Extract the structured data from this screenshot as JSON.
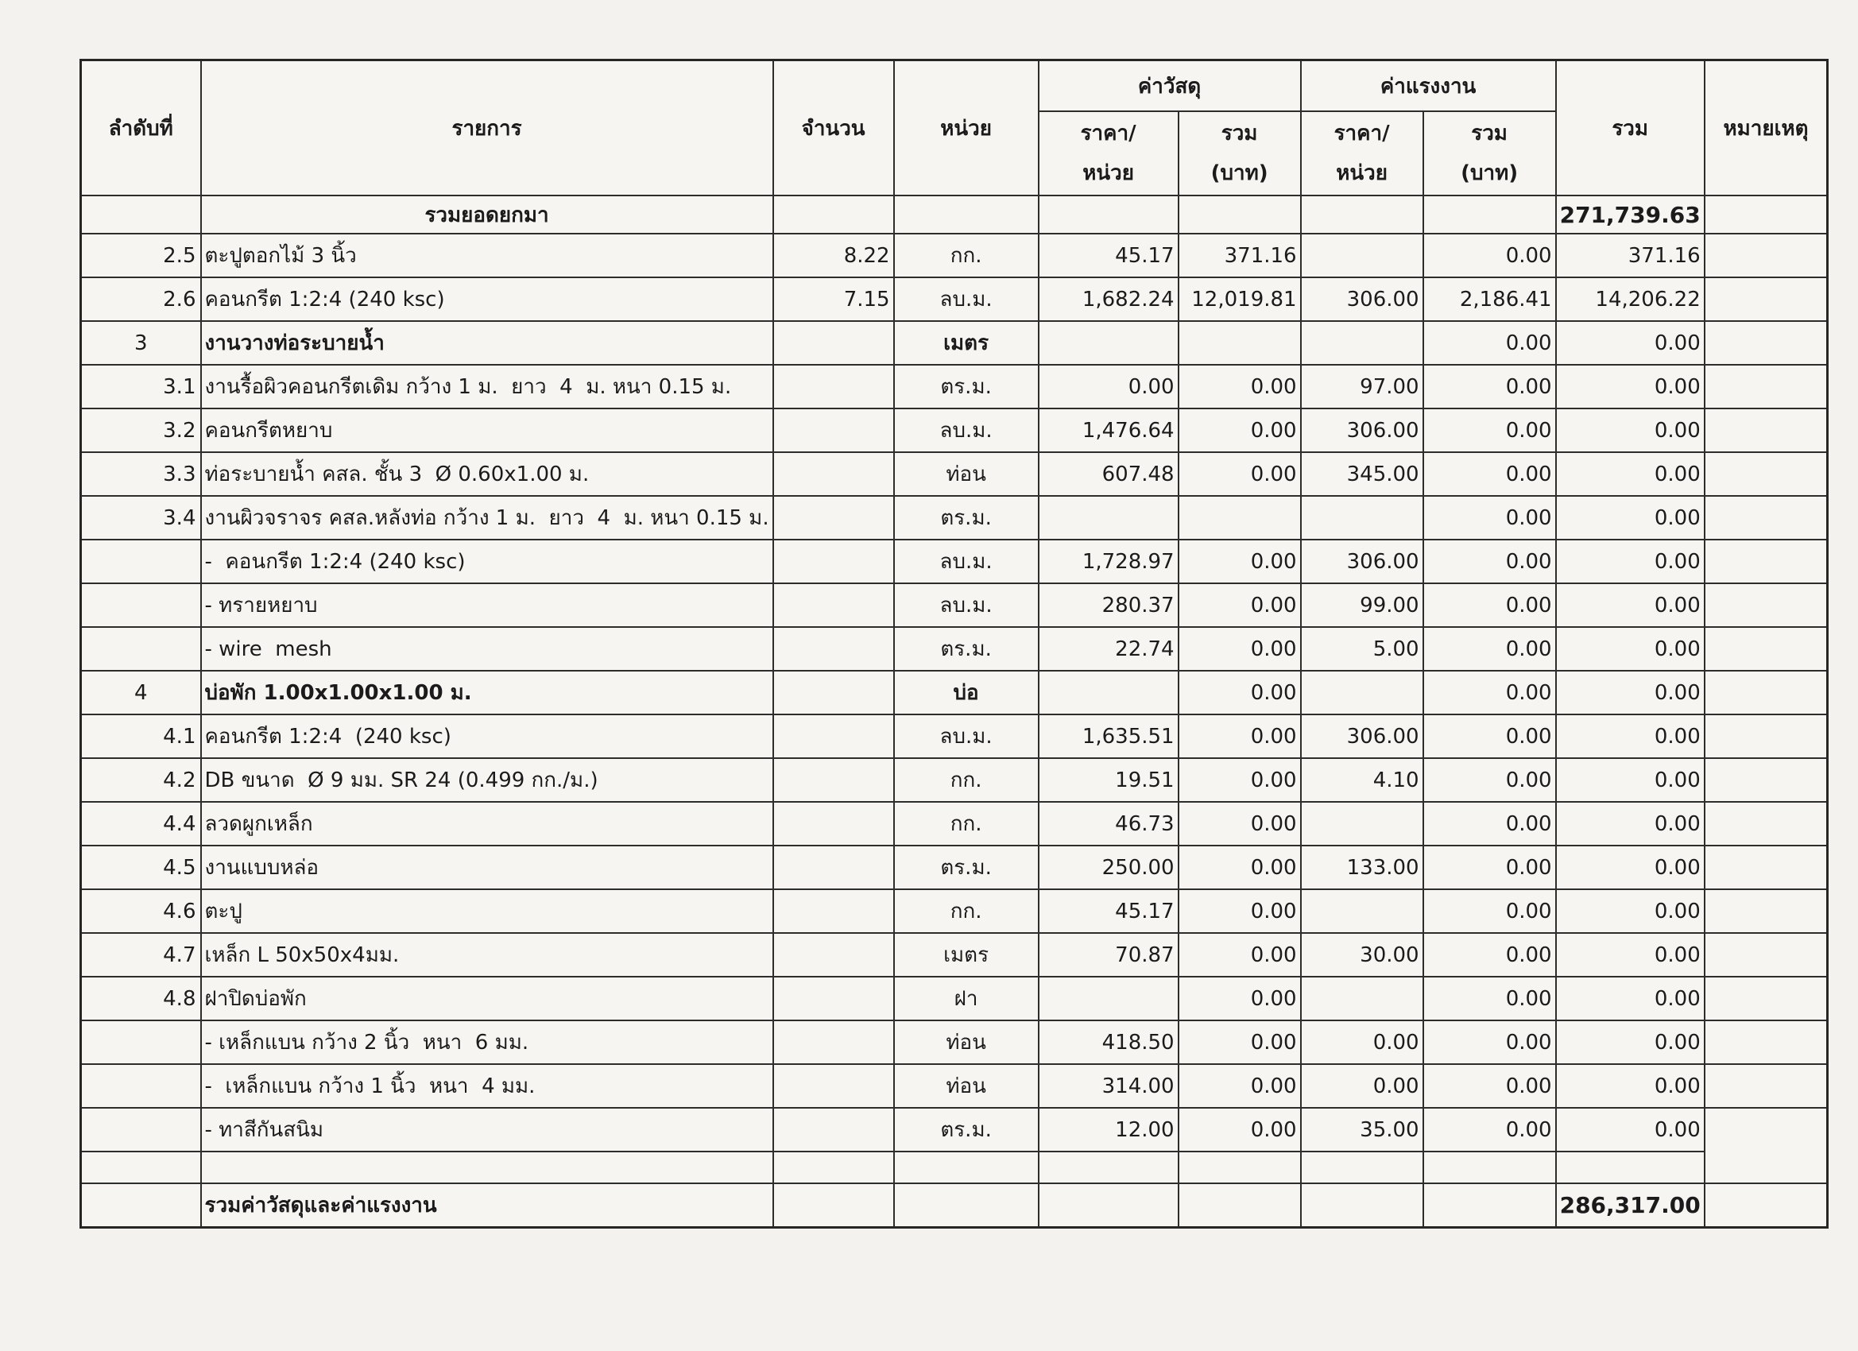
{
  "table": {
    "headers": {
      "no": "ลำดับที่",
      "description": "รายการ",
      "quantity": "จำนวน",
      "unit": "หน่วย",
      "material_group": "ค่าวัสดุ",
      "labor_group": "ค่าแรงงาน",
      "price_per_unit_l1": "ราคา/",
      "price_per_unit_l2": "หน่วย",
      "total_baht_l1": "รวม",
      "total_baht_l2": "(บาท)",
      "grand_total": "รวม",
      "remarks": "หมายเหตุ"
    },
    "rows": [
      {
        "style": "summary",
        "no": "",
        "description": "รวมยอดยกมา",
        "quantity": "",
        "unit": "",
        "material_price": "",
        "material_total": "",
        "labor_price": "",
        "labor_total": "",
        "total": "271,739.63",
        "remark": ""
      },
      {
        "no": "2.5",
        "indent": 1,
        "description": "ตะปูตอกไม้ 3 นิ้ว",
        "quantity": "8.22",
        "unit": "กก.",
        "material_price": "45.17",
        "material_total": "371.16",
        "labor_price": "",
        "labor_total": "0.00",
        "total": "371.16",
        "remark": ""
      },
      {
        "no": "2.6",
        "indent": 1,
        "description": "คอนกรีต 1:2:4 (240 ksc)",
        "quantity": "7.15",
        "unit": "ลบ.ม.",
        "material_price": "1,682.24",
        "material_total": "12,019.81",
        "labor_price": "306.00",
        "labor_total": "2,186.41",
        "total": "14,206.22",
        "remark": ""
      },
      {
        "style": "section",
        "no": "3",
        "indent": 0,
        "description": "งานวางท่อระบายน้ำ",
        "quantity": "",
        "unit": "เมตร",
        "material_price": "",
        "material_total": "",
        "labor_price": "",
        "labor_total": "0.00",
        "total": "0.00",
        "remark": ""
      },
      {
        "no": "3.1",
        "indent": 0,
        "description": "งานรื้อผิวคอนกรีตเดิม กว้าง 1 ม.  ยาว  4  ม. หนา 0.15 ม.",
        "quantity": "",
        "unit": "ตร.ม.",
        "material_price": "0.00",
        "material_total": "0.00",
        "labor_price": "97.00",
        "labor_total": "0.00",
        "total": "0.00",
        "remark": ""
      },
      {
        "no": "3.2",
        "indent": 0,
        "description": "คอนกรีตหยาบ",
        "quantity": "",
        "unit": "ลบ.ม.",
        "material_price": "1,476.64",
        "material_total": "0.00",
        "labor_price": "306.00",
        "labor_total": "0.00",
        "total": "0.00",
        "remark": ""
      },
      {
        "no": "3.3",
        "indent": 0,
        "description": "ท่อระบายน้ำ คสล. ชั้น 3  Ø 0.60x1.00 ม.",
        "quantity": "",
        "unit": "ท่อน",
        "material_price": "607.48",
        "material_total": "0.00",
        "labor_price": "345.00",
        "labor_total": "0.00",
        "total": "0.00",
        "remark": ""
      },
      {
        "no": "3.4",
        "indent": 0,
        "description": "งานผิวจราจร คสล.หลังท่อ กว้าง 1 ม.  ยาว  4  ม. หนา 0.15 ม.",
        "quantity": "",
        "unit": "ตร.ม.",
        "material_price": "",
        "material_total": "",
        "labor_price": "",
        "labor_total": "0.00",
        "total": "0.00",
        "remark": ""
      },
      {
        "no": "",
        "indent": 2,
        "description": "-  คอนกรีต 1:2:4 (240 ksc)",
        "quantity": "",
        "unit": "ลบ.ม.",
        "material_price": "1,728.97",
        "material_total": "0.00",
        "labor_price": "306.00",
        "labor_total": "0.00",
        "total": "0.00",
        "remark": ""
      },
      {
        "no": "",
        "indent": 2,
        "description": "- ทรายหยาบ",
        "quantity": "",
        "unit": "ลบ.ม.",
        "material_price": "280.37",
        "material_total": "0.00",
        "labor_price": "99.00",
        "labor_total": "0.00",
        "total": "0.00",
        "remark": ""
      },
      {
        "no": "",
        "indent": 2,
        "description": "- wire  mesh",
        "quantity": "",
        "unit": "ตร.ม.",
        "material_price": "22.74",
        "material_total": "0.00",
        "labor_price": "5.00",
        "labor_total": "0.00",
        "total": "0.00",
        "remark": ""
      },
      {
        "style": "section",
        "no": "4",
        "indent": 0,
        "description": "บ่อพัก 1.00x1.00x1.00 ม.",
        "quantity": "",
        "unit": "บ่อ",
        "material_price": "",
        "material_total": "0.00",
        "labor_price": "",
        "labor_total": "0.00",
        "total": "0.00",
        "remark": ""
      },
      {
        "no": "4.1",
        "indent": 1,
        "description": "คอนกรีต 1:2:4  (240 ksc)",
        "quantity": "",
        "unit": "ลบ.ม.",
        "material_price": "1,635.51",
        "material_total": "0.00",
        "labor_price": "306.00",
        "labor_total": "0.00",
        "total": "0.00",
        "remark": ""
      },
      {
        "no": "4.2",
        "indent": 1,
        "description": "DB ขนาด  Ø 9 มม. SR 24 (0.499 กก./ม.)",
        "quantity": "",
        "unit": "กก.",
        "material_price": "19.51",
        "material_total": "0.00",
        "labor_price": "4.10",
        "labor_total": "0.00",
        "total": "0.00",
        "remark": ""
      },
      {
        "no": "4.4",
        "indent": 1,
        "description": "ลวดผูกเหล็ก",
        "quantity": "",
        "unit": "กก.",
        "material_price": "46.73",
        "material_total": "0.00",
        "labor_price": "",
        "labor_total": "0.00",
        "total": "0.00",
        "remark": ""
      },
      {
        "no": "4.5",
        "indent": 1,
        "description": "งานแบบหล่อ",
        "quantity": "",
        "unit": "ตร.ม.",
        "material_price": "250.00",
        "material_total": "0.00",
        "labor_price": "133.00",
        "labor_total": "0.00",
        "total": "0.00",
        "remark": ""
      },
      {
        "no": "4.6",
        "indent": 1,
        "description": "ตะปู",
        "quantity": "",
        "unit": "กก.",
        "material_price": "45.17",
        "material_total": "0.00",
        "labor_price": "",
        "labor_total": "0.00",
        "total": "0.00",
        "remark": ""
      },
      {
        "no": "4.7",
        "indent": 1,
        "description": "เหล็ก L 50x50x4มม.",
        "quantity": "",
        "unit": "เมตร",
        "material_price": "70.87",
        "material_total": "0.00",
        "labor_price": "30.00",
        "labor_total": "0.00",
        "total": "0.00",
        "remark": ""
      },
      {
        "no": "4.8",
        "indent": 0,
        "description": "ฝาปิดบ่อพัก",
        "quantity": "",
        "unit": "ฝา",
        "material_price": "",
        "material_total": "0.00",
        "labor_price": "",
        "labor_total": "0.00",
        "total": "0.00",
        "remark": ""
      },
      {
        "no": "",
        "indent": 2,
        "description": "- เหล็กแบน กว้าง 2 นิ้ว  หนา  6 มม.",
        "quantity": "",
        "unit": "ท่อน",
        "material_price": "418.50",
        "material_total": "0.00",
        "labor_price": "0.00",
        "labor_total": "0.00",
        "total": "0.00",
        "remark": ""
      },
      {
        "no": "",
        "indent": 2,
        "description": "-  เหล็กแบน กว้าง 1 นิ้ว  หนา  4 มม.",
        "quantity": "",
        "unit": "ท่อน",
        "material_price": "314.00",
        "material_total": "0.00",
        "labor_price": "0.00",
        "labor_total": "0.00",
        "total": "0.00",
        "remark": ""
      },
      {
        "no": "",
        "indent": 2,
        "description": "- ทาสีกันสนิม",
        "quantity": "",
        "unit": "ตร.ม.",
        "material_price": "12.00",
        "material_total": "0.00",
        "labor_price": "35.00",
        "labor_total": "0.00",
        "total": "0.00",
        "remark": "",
        "remark_rowspan": 2
      },
      {
        "style": "empty",
        "no": "",
        "description": "",
        "quantity": "",
        "unit": "",
        "material_price": "",
        "material_total": "",
        "labor_price": "",
        "labor_total": "",
        "total": "",
        "skip_remark": true
      },
      {
        "style": "grand",
        "no": "",
        "indent": 0,
        "description": "รวมค่าวัสดุและค่าแรงงาน",
        "quantity": "",
        "unit": "",
        "material_price": "",
        "material_total": "",
        "labor_price": "",
        "labor_total": "",
        "total": "286,317.00",
        "remark": ""
      }
    ]
  }
}
